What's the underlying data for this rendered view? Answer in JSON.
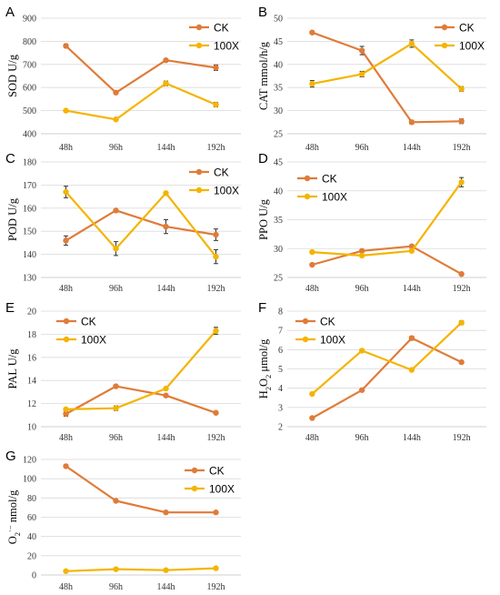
{
  "colors": {
    "CK": "#E07B39",
    "100X": "#F4B400",
    "grid": "#d9d9d9",
    "axis": "#bfbfbf",
    "errbar": "#333333"
  },
  "chart_data": [
    {
      "panel": "A",
      "type": "line",
      "categories": [
        "48h",
        "96h",
        "144h",
        "192h"
      ],
      "ylabel": "SOD U/g",
      "ylim": [
        400,
        900
      ],
      "yticks": [
        400,
        500,
        600,
        700,
        800,
        900
      ],
      "legend_position": "top-right",
      "grid": true,
      "series": [
        {
          "name": "CK",
          "values": [
            780,
            578,
            718,
            686
          ],
          "errors": [
            8,
            5,
            6,
            12
          ]
        },
        {
          "name": "100X",
          "values": [
            500,
            462,
            618,
            526
          ],
          "errors": [
            5,
            5,
            10,
            10
          ]
        }
      ]
    },
    {
      "panel": "B",
      "type": "line",
      "categories": [
        "48h",
        "96h",
        "144h",
        "192h"
      ],
      "ylabel": "CAT mmol/h/g",
      "ylim": [
        25,
        50
      ],
      "yticks": [
        25,
        30,
        35,
        40,
        45,
        50
      ],
      "legend_position": "top-right",
      "grid": true,
      "series": [
        {
          "name": "CK",
          "values": [
            46.9,
            43.0,
            27.5,
            27.7
          ],
          "errors": [
            0.3,
            0.9,
            0.4,
            0.5
          ]
        },
        {
          "name": "100X",
          "values": [
            35.8,
            37.9,
            44.5,
            34.7
          ],
          "errors": [
            0.7,
            0.6,
            0.8,
            0.5
          ]
        }
      ]
    },
    {
      "panel": "C",
      "type": "line",
      "categories": [
        "48h",
        "96h",
        "144h",
        "192h"
      ],
      "ylabel": "POD U/g",
      "ylim": [
        130,
        180
      ],
      "yticks": [
        130,
        140,
        150,
        160,
        170,
        180
      ],
      "legend_position": "top-right",
      "grid": true,
      "series": [
        {
          "name": "CK",
          "values": [
            146,
            159,
            152,
            148.5
          ],
          "errors": [
            2,
            0.5,
            3,
            2.5
          ]
        },
        {
          "name": "100X",
          "values": [
            167,
            142.5,
            166.5,
            139
          ],
          "errors": [
            2.5,
            3,
            0.5,
            3
          ]
        }
      ]
    },
    {
      "panel": "D",
      "type": "line",
      "categories": [
        "48h",
        "96h",
        "144h",
        "192h"
      ],
      "ylabel": "PPO U/g",
      "ylim": [
        25,
        45
      ],
      "yticks": [
        25,
        30,
        35,
        40,
        45
      ],
      "legend_position": "top-left",
      "grid": true,
      "series": [
        {
          "name": "CK",
          "values": [
            27.2,
            29.6,
            30.4,
            25.6
          ],
          "errors": [
            0,
            0,
            0,
            0
          ]
        },
        {
          "name": "100X",
          "values": [
            29.4,
            28.8,
            29.6,
            41.5
          ],
          "errors": [
            0,
            0,
            0,
            0.8
          ]
        }
      ]
    },
    {
      "panel": "E",
      "type": "line",
      "categories": [
        "48h",
        "96h",
        "144h",
        "192h"
      ],
      "ylabel": "PAL U/g",
      "ylim": [
        10,
        20
      ],
      "yticks": [
        10,
        12,
        14,
        16,
        18,
        20
      ],
      "legend_position": "top-left",
      "grid": true,
      "series": [
        {
          "name": "CK",
          "values": [
            11.1,
            13.5,
            12.7,
            11.2
          ],
          "errors": [
            0.2,
            0,
            0,
            0
          ]
        },
        {
          "name": "100X",
          "values": [
            11.5,
            11.6,
            13.3,
            18.3
          ],
          "errors": [
            0,
            0.2,
            0,
            0.3
          ]
        }
      ]
    },
    {
      "panel": "F",
      "type": "line",
      "categories": [
        "48h",
        "96h",
        "144h",
        "192h"
      ],
      "ylabel": "H2O2 μmol/g",
      "ylabel_main": "H",
      "ylabel_sub1": "2",
      "ylabel_mid": "O",
      "ylabel_sub2": "2",
      "ylabel_unit": " μmol/g",
      "ylim": [
        2,
        8
      ],
      "yticks": [
        2,
        3,
        4,
        5,
        6,
        7,
        8
      ],
      "legend_position": "top-left",
      "grid": true,
      "series": [
        {
          "name": "CK",
          "values": [
            2.45,
            3.9,
            6.6,
            5.35
          ],
          "errors": [
            0,
            0,
            0.1,
            0
          ]
        },
        {
          "name": "100X",
          "values": [
            3.7,
            5.95,
            4.95,
            7.4
          ],
          "errors": [
            0,
            0,
            0,
            0.1
          ]
        }
      ]
    },
    {
      "panel": "G",
      "type": "line",
      "categories": [
        "48h",
        "96h",
        "144h",
        "192h"
      ],
      "ylabel": "O2·− nmol/g",
      "ylabel_main": "O",
      "ylabel_sub1": "2",
      "ylabel_sup": "·−",
      "ylabel_unit": " nmol/g",
      "ylim": [
        0,
        120
      ],
      "yticks": [
        0,
        20,
        40,
        60,
        80,
        100,
        120
      ],
      "legend_position": "top-right",
      "grid": true,
      "series": [
        {
          "name": "CK",
          "values": [
            113,
            77,
            65,
            65
          ],
          "errors": [
            0,
            0,
            0,
            0
          ]
        },
        {
          "name": "100X",
          "values": [
            4,
            6,
            5,
            7
          ],
          "errors": [
            0,
            0,
            0,
            0
          ]
        }
      ]
    }
  ]
}
